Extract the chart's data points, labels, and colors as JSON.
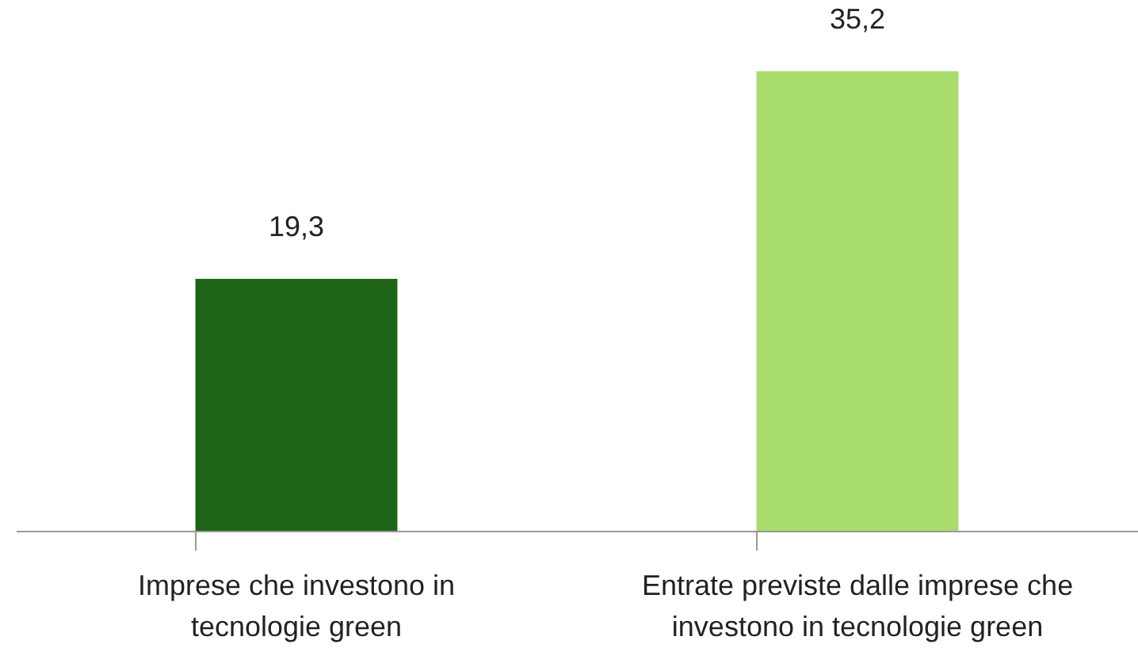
{
  "chart_data": {
    "type": "bar",
    "categories": [
      "Imprese che investono in tecnologie green",
      "Entrate previste dalle imprese che investono in tecnologie green"
    ],
    "values": [
      19.3,
      35.2
    ],
    "colors": [
      "#1e6418",
      "#a8dc6c"
    ],
    "value_labels": [
      "19,3",
      "35,2"
    ]
  }
}
